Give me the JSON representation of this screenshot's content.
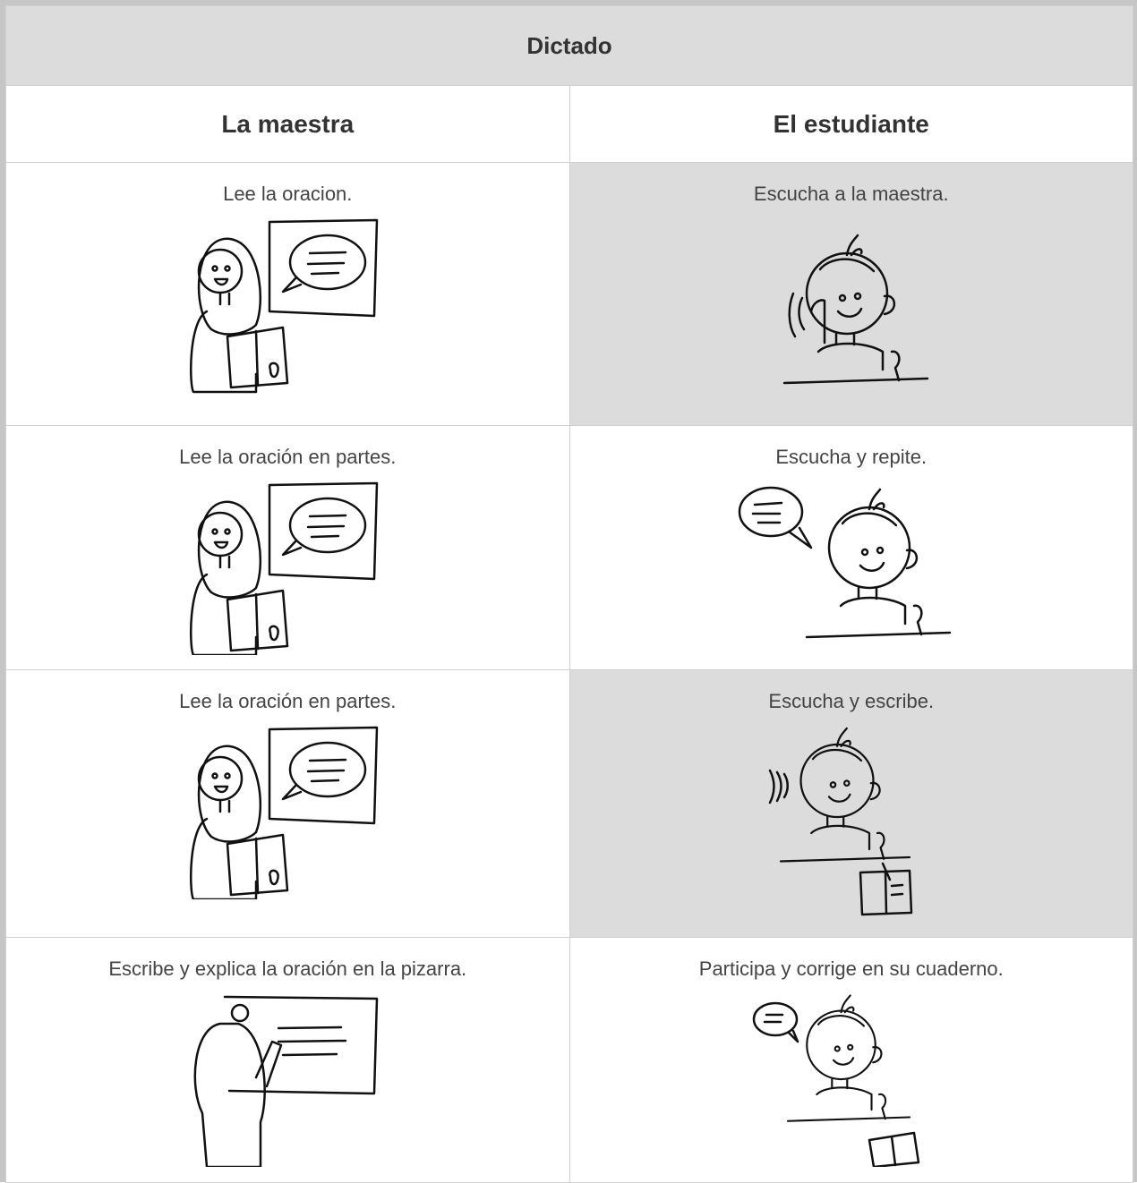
{
  "table": {
    "title": "Dictado",
    "headers": [
      "La maestra",
      "El estudiante"
    ],
    "rows": [
      [
        "Lee la oracion.",
        "Escucha a la maestra."
      ],
      [
        "Lee la oración en partes.",
        "Escucha y repite."
      ],
      [
        "Lee la oración en partes.",
        "Escucha y escribe."
      ],
      [
        "Escribe y explica la oración en la pizarra.",
        "Participa y corrige en su cuaderno."
      ]
    ]
  }
}
